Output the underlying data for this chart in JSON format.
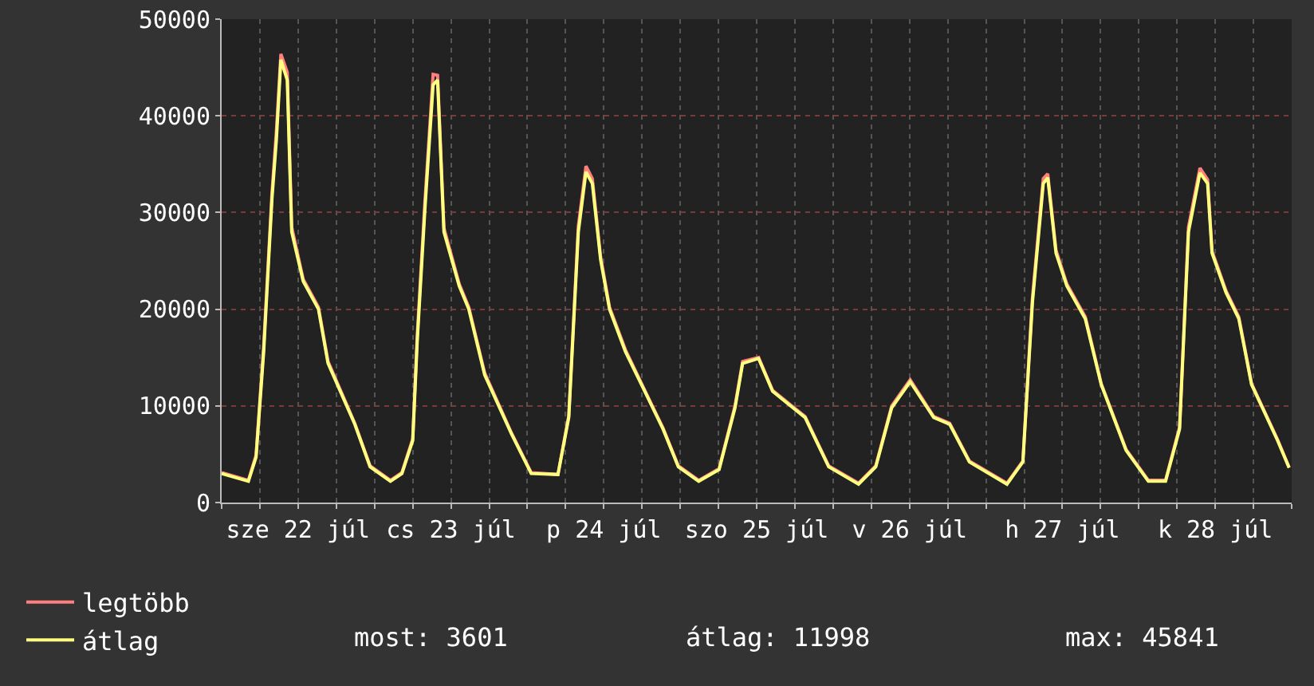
{
  "chart_data": {
    "type": "line",
    "x": [
      "--07-22T00:00",
      "--07-22T04:12",
      "--07-22T05:24",
      "--07-22T06:36",
      "--07-22T07:54",
      "--07-22T08:36",
      "--07-22T09:18",
      "--07-22T10:18",
      "--07-22T11:00",
      "--07-22T12:48",
      "--07-22T15:12",
      "--07-22T16:42",
      "--07-22T20:54",
      "--07-22T23:18",
      "--07-23T02:30",
      "--07-23T04:18",
      "--07-23T06:00",
      "--07-23T06:42",
      "--07-23T07:54",
      "--07-23T09:12",
      "--07-23T09:54",
      "--07-23T10:54",
      "--07-23T13:18",
      "--07-23T14:48",
      "--07-23T17:18",
      "--07-23T21:30",
      "--07-24T00:36",
      "--07-24T04:48",
      "--07-24T06:30",
      "--07-24T08:00",
      "--07-24T09:12",
      "--07-24T10:12",
      "--07-24T11:30",
      "--07-24T12:54",
      "--07-24T15:24",
      "--07-24T18:48",
      "--07-24T21:18",
      "--07-24T23:42",
      "--07-25T02:54",
      "--07-25T06:06",
      "--07-25T08:36",
      "--07-25T09:48",
      "--07-25T12:18",
      "--07-25T14:30",
      "--07-25T17:42",
      "--07-25T19:36",
      "--07-25T23:18",
      "--07-26T04:00",
      "--07-26T06:42",
      "--07-26T09:12",
      "--07-26T12:06",
      "--07-26T15:48",
      "--07-26T18:18",
      "--07-26T21:24",
      "--07-27T03:18",
      "--07-27T05:48",
      "--07-27T07:18",
      "--07-27T09:00",
      "--07-27T09:42",
      "--07-27T11:00",
      "--07-27T12:42",
      "--07-27T15:36",
      "--07-27T18:06",
      "--07-27T22:00",
      "--07-28T01:30",
      "--07-28T04:12",
      "--07-28T06:24",
      "--07-28T07:48",
      "--07-28T09:36",
      "--07-28T10:48",
      "--07-28T11:30",
      "--07-28T13:42",
      "--07-28T15:42",
      "--07-28T17:42",
      "--07-28T19:24",
      "--07-28T21:48",
      "--07-28T23:36"
    ],
    "series": [
      {
        "name": "legtöbb",
        "color": "#ff7f7f",
        "values": [
          3100,
          2300,
          4900,
          16200,
          32000,
          38500,
          46400,
          44500,
          28500,
          23100,
          20200,
          14600,
          8200,
          3800,
          2300,
          3100,
          6600,
          17200,
          31000,
          44300,
          44200,
          28400,
          22600,
          20200,
          13400,
          7200,
          3100,
          2900,
          9000,
          28600,
          34800,
          33500,
          25400,
          20200,
          15800,
          11100,
          7700,
          3800,
          2300,
          3500,
          10000,
          14600,
          15000,
          11600,
          9900,
          8900,
          3800,
          2000,
          3800,
          10000,
          12700,
          8900,
          8200,
          4300,
          2000,
          4300,
          21200,
          33500,
          34000,
          26100,
          22600,
          19200,
          12300,
          5500,
          2300,
          2300,
          7800,
          28500,
          34600,
          33400,
          26000,
          21900,
          19200,
          12300,
          9900,
          6500,
          3600
        ]
      },
      {
        "name": "átlag",
        "color": "#ffff7f",
        "values": [
          3000,
          2200,
          4700,
          15600,
          31400,
          37600,
          45800,
          43700,
          28000,
          22900,
          20000,
          14400,
          8100,
          3700,
          2200,
          3000,
          6400,
          16600,
          30200,
          43200,
          43700,
          28000,
          22400,
          20000,
          13200,
          7100,
          3000,
          2900,
          8800,
          28000,
          34200,
          33000,
          25100,
          20000,
          15600,
          11000,
          7600,
          3700,
          2200,
          3400,
          9800,
          14400,
          14900,
          11500,
          9800,
          8800,
          3700,
          1900,
          3700,
          9800,
          12500,
          8800,
          8100,
          4200,
          1900,
          4200,
          20700,
          33000,
          33600,
          25800,
          22400,
          19000,
          12200,
          5400,
          2200,
          2200,
          7600,
          28000,
          34100,
          33000,
          25800,
          21700,
          19000,
          12200,
          9800,
          6400,
          3600
        ]
      }
    ],
    "xlim": [
      "--07-22T00:00",
      "--07-29T00:00"
    ],
    "xticks": [
      {
        "value": "--07-22T00:00",
        "label": null
      },
      {
        "value": "--07-22T06:00",
        "label": null
      },
      {
        "value": "--07-22T12:00",
        "label": "sze 22 júl"
      },
      {
        "value": "--07-22T18:00",
        "label": null
      },
      {
        "value": "--07-23T00:00",
        "label": null
      },
      {
        "value": "--07-23T06:00",
        "label": null
      },
      {
        "value": "--07-23T12:00",
        "label": "cs 23 júl"
      },
      {
        "value": "--07-23T18:00",
        "label": null
      },
      {
        "value": "--07-24T00:00",
        "label": null
      },
      {
        "value": "--07-24T06:00",
        "label": null
      },
      {
        "value": "--07-24T12:00",
        "label": "p 24 júl"
      },
      {
        "value": "--07-24T18:00",
        "label": null
      },
      {
        "value": "--07-25T00:00",
        "label": null
      },
      {
        "value": "--07-25T06:00",
        "label": null
      },
      {
        "value": "--07-25T12:00",
        "label": "szo 25 júl"
      },
      {
        "value": "--07-25T18:00",
        "label": null
      },
      {
        "value": "--07-26T00:00",
        "label": null
      },
      {
        "value": "--07-26T06:00",
        "label": null
      },
      {
        "value": "--07-26T12:00",
        "label": "v 26 júl"
      },
      {
        "value": "--07-26T18:00",
        "label": null
      },
      {
        "value": "--07-27T00:00",
        "label": null
      },
      {
        "value": "--07-27T06:00",
        "label": null
      },
      {
        "value": "--07-27T12:00",
        "label": "h 27 júl"
      },
      {
        "value": "--07-27T18:00",
        "label": null
      },
      {
        "value": "--07-28T00:00",
        "label": null
      },
      {
        "value": "--07-28T06:00",
        "label": null
      },
      {
        "value": "--07-28T12:00",
        "label": "k 28 júl"
      },
      {
        "value": "--07-28T18:00",
        "label": null
      },
      {
        "value": "--07-29T00:00",
        "label": null
      }
    ],
    "ylim": [
      0,
      50000
    ],
    "yticks": [
      0,
      10000,
      20000,
      30000,
      40000,
      50000
    ],
    "grid": true,
    "legend": "bottom left",
    "annotations": [
      "most: 3601",
      "átlag: 11998",
      "max: 45841"
    ]
  }
}
